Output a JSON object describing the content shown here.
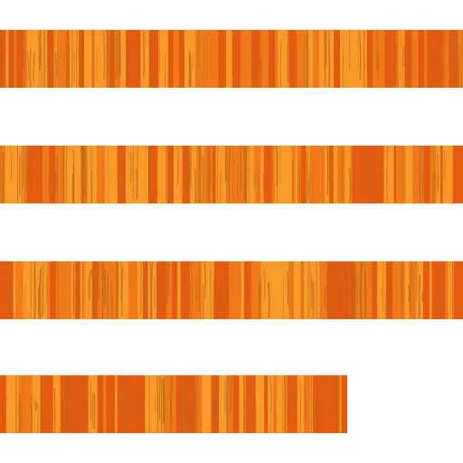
{
  "icon": {
    "name": "menu-lines-icon",
    "line_count": 4,
    "colors": {
      "base": "#F07A1A",
      "light": "#F99A2A",
      "dark": "#E35A10",
      "stroke": "#B8681C",
      "background": "#FFFFFF"
    }
  }
}
